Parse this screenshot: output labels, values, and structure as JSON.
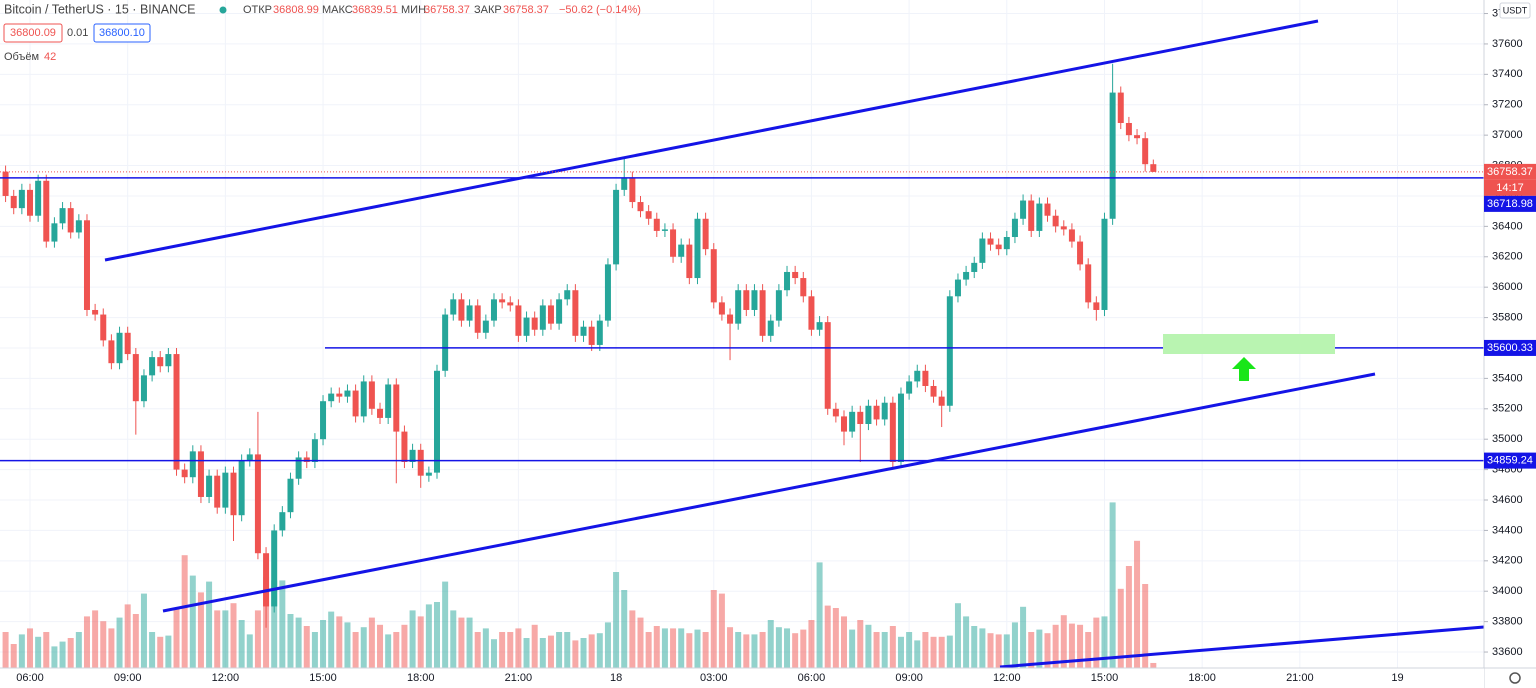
{
  "header": {
    "symbol": "Bitcoin / TetherUS · 15 · BINANCE",
    "open_label": "ОТКР",
    "high_label": "МАКС",
    "low_label": "МИН",
    "close_label": "ЗАКР",
    "change": "−50.62 (−0.14%)",
    "bid": "36800.09",
    "spread": "0.01",
    "ask": "36800.10",
    "volume_label": "Объём"
  },
  "chart_data": {
    "type": "candlestick",
    "currency": "USDT",
    "countdown": "14:17",
    "ylim": [
      33495,
      37889
    ],
    "yticks": [
      33600,
      33800,
      34000,
      34200,
      34400,
      34600,
      34800,
      35000,
      35200,
      35400,
      35600,
      35800,
      36000,
      36200,
      36400,
      36600,
      36800,
      37000,
      37200,
      37400,
      37600,
      37800
    ],
    "vlim": [
      0,
      1400
    ],
    "grid": true,
    "up_color": "#26a69a",
    "down_color": "#ef5350",
    "level_color": "#1414e6",
    "x_axis_labels": [
      "06:00",
      "09:00",
      "12:00",
      "15:00",
      "18:00",
      "21:00",
      "18",
      "03:00",
      "06:00",
      "09:00",
      "12:00",
      "15:00",
      "18:00",
      "21:00",
      "19"
    ],
    "levels": [
      36718.98,
      35600.33,
      34859.24
    ],
    "open": [
      36760,
      36600,
      36520,
      36640,
      36470,
      36700,
      36300,
      36420,
      36520,
      36360,
      36440,
      35850,
      35820,
      35650,
      35500,
      35700,
      35560,
      35250,
      35420,
      35540,
      35480,
      35560,
      34800,
      34750,
      34920,
      34620,
      34760,
      34550,
      34780,
      34500,
      34860,
      34900,
      34250,
      33900,
      34400,
      34520,
      34740,
      34880,
      34850,
      35000,
      35250,
      35300,
      35280,
      35320,
      35150,
      35380,
      35200,
      35140,
      35360,
      35050,
      34850,
      34930,
      34760,
      34780,
      35450,
      35820,
      35920,
      35780,
      35880,
      35700,
      35780,
      35920,
      35900,
      35880,
      35680,
      35800,
      35720,
      35880,
      35760,
      35920,
      35980,
      35680,
      35740,
      35620,
      35780,
      36150,
      36640,
      36720,
      36560,
      36500,
      36450,
      36370,
      36380,
      36200,
      36280,
      36060,
      36450,
      36250,
      35900,
      35820,
      35760,
      35980,
      35850,
      35980,
      35680,
      35780,
      35980,
      36100,
      36060,
      35940,
      35720,
      35770,
      35200,
      35150,
      35050,
      35180,
      35100,
      35220,
      35130,
      35240,
      34850,
      35300,
      35380,
      35450,
      35350,
      35280,
      35220,
      35940,
      36050,
      36100,
      36160,
      36320,
      36280,
      36250,
      36330,
      36450,
      36570,
      36370,
      36550,
      36470,
      36400,
      36380,
      36300,
      36150,
      35900,
      35850,
      36450,
      37280,
      37080,
      37000,
      36980,
      36808.99
    ],
    "high": [
      36800,
      36640,
      36680,
      36680,
      36740,
      36740,
      36460,
      36560,
      36560,
      36480,
      36480,
      35890,
      35860,
      35690,
      35740,
      35740,
      35600,
      35460,
      35580,
      35580,
      35600,
      35600,
      34840,
      34960,
      34960,
      34800,
      34800,
      34820,
      34820,
      34900,
      34940,
      35180,
      34290,
      34440,
      34560,
      34780,
      34920,
      34920,
      35040,
      35290,
      35340,
      35340,
      35360,
      35360,
      35420,
      35420,
      35240,
      35400,
      35400,
      35090,
      34970,
      34970,
      34820,
      35490,
      35860,
      35960,
      35960,
      35920,
      35920,
      35820,
      35960,
      35960,
      35940,
      35920,
      35840,
      35840,
      35920,
      35920,
      35960,
      36020,
      36020,
      35780,
      35780,
      35820,
      36190,
      36680,
      36850,
      36760,
      36600,
      36540,
      36490,
      36420,
      36420,
      36320,
      36320,
      36490,
      36490,
      36290,
      35940,
      35860,
      36020,
      36020,
      36020,
      36020,
      35820,
      36020,
      36140,
      36140,
      36100,
      35980,
      35810,
      35810,
      35240,
      35190,
      35220,
      35220,
      35260,
      35260,
      35280,
      35280,
      35340,
      35420,
      35490,
      35490,
      35390,
      35320,
      35980,
      36090,
      36140,
      36200,
      36360,
      36360,
      36320,
      36370,
      36490,
      36610,
      36610,
      36590,
      36590,
      36510,
      36440,
      36420,
      36340,
      36190,
      35940,
      36490,
      37470,
      37320,
      37120,
      37040,
      37020,
      36839.51
    ],
    "low": [
      36560,
      36480,
      36480,
      36430,
      36430,
      36260,
      36260,
      36380,
      36320,
      36320,
      35810,
      35780,
      35610,
      35460,
      35460,
      35520,
      35030,
      35210,
      35380,
      35440,
      35440,
      34760,
      34710,
      34710,
      34580,
      34580,
      34510,
      34510,
      34330,
      34460,
      34820,
      34210,
      33760,
      33860,
      34360,
      34480,
      34700,
      34810,
      34810,
      34960,
      35210,
      35240,
      35240,
      35110,
      35110,
      35160,
      35100,
      35100,
      34710,
      34810,
      34810,
      34680,
      34720,
      34740,
      35410,
      35780,
      35740,
      35740,
      35660,
      35660,
      35740,
      35860,
      35840,
      35640,
      35640,
      35680,
      35680,
      35720,
      35720,
      35880,
      35640,
      35640,
      35580,
      35580,
      35740,
      36110,
      36600,
      36520,
      36460,
      36410,
      36330,
      36330,
      36160,
      36160,
      36020,
      36020,
      36210,
      35860,
      35780,
      35520,
      35720,
      35810,
      35810,
      35640,
      35640,
      35740,
      35940,
      36020,
      35900,
      35680,
      35680,
      35160,
      35110,
      34960,
      35010,
      34850,
      35060,
      35090,
      35090,
      34810,
      34810,
      35260,
      35340,
      35310,
      35240,
      35080,
      35180,
      35900,
      36010,
      36060,
      36120,
      36240,
      36210,
      36210,
      36290,
      36410,
      36330,
      36330,
      36430,
      36360,
      36340,
      36260,
      36110,
      35860,
      35780,
      35810,
      36410,
      37040,
      36960,
      36940,
      36760,
      36758.37
    ],
    "close": [
      36600,
      36520,
      36640,
      36470,
      36700,
      36300,
      36420,
      36520,
      36360,
      36440,
      35850,
      35820,
      35650,
      35500,
      35700,
      35560,
      35250,
      35420,
      35540,
      35480,
      35560,
      34800,
      34750,
      34920,
      34620,
      34760,
      34550,
      34780,
      34500,
      34860,
      34900,
      34250,
      33900,
      34400,
      34520,
      34740,
      34880,
      34850,
      35000,
      35250,
      35300,
      35280,
      35320,
      35150,
      35380,
      35200,
      35140,
      35360,
      35050,
      34850,
      34930,
      34760,
      34780,
      35450,
      35820,
      35920,
      35780,
      35880,
      35700,
      35780,
      35920,
      35900,
      35880,
      35680,
      35800,
      35720,
      35880,
      35760,
      35920,
      35980,
      35680,
      35740,
      35620,
      35780,
      36150,
      36640,
      36720,
      36560,
      36500,
      36450,
      36370,
      36380,
      36200,
      36280,
      36060,
      36450,
      36250,
      35900,
      35820,
      35760,
      35980,
      35850,
      35980,
      35680,
      35780,
      35980,
      36100,
      36060,
      35940,
      35720,
      35770,
      35200,
      35150,
      35050,
      35180,
      35100,
      35220,
      35130,
      35240,
      34850,
      35300,
      35380,
      35450,
      35350,
      35280,
      35220,
      35940,
      36050,
      36100,
      36160,
      36320,
      36280,
      36250,
      36330,
      36450,
      36570,
      36370,
      36550,
      36470,
      36400,
      36380,
      36300,
      36150,
      35900,
      35850,
      36450,
      37280,
      37080,
      37000,
      36980,
      36808.99,
      36758.37
    ],
    "volume": [
      300,
      200,
      280,
      330,
      260,
      300,
      180,
      220,
      250,
      300,
      430,
      480,
      390,
      330,
      420,
      530,
      450,
      620,
      300,
      260,
      270,
      500,
      940,
      770,
      630,
      720,
      480,
      480,
      540,
      400,
      280,
      480,
      760,
      730,
      730,
      450,
      420,
      350,
      300,
      400,
      470,
      430,
      380,
      300,
      340,
      420,
      360,
      280,
      300,
      360,
      480,
      430,
      530,
      550,
      720,
      480,
      420,
      420,
      300,
      330,
      240,
      300,
      300,
      330,
      250,
      360,
      250,
      270,
      300,
      300,
      230,
      250,
      280,
      290,
      380,
      800,
      650,
      480,
      420,
      300,
      350,
      330,
      330,
      330,
      290,
      320,
      300,
      650,
      620,
      340,
      300,
      280,
      280,
      300,
      400,
      340,
      330,
      290,
      320,
      400,
      880,
      520,
      500,
      430,
      320,
      400,
      360,
      300,
      300,
      350,
      260,
      300,
      230,
      300,
      260,
      260,
      270,
      540,
      430,
      350,
      330,
      290,
      280,
      280,
      380,
      510,
      300,
      320,
      290,
      360,
      440,
      370,
      360,
      300,
      420,
      430,
      1380,
      660,
      850,
      1060,
      700,
      42
    ]
  }
}
